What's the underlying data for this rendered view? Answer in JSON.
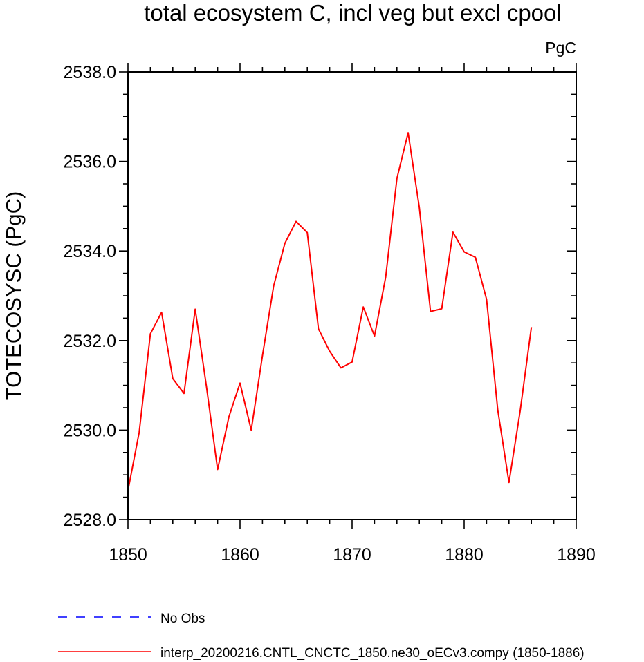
{
  "chart_data": {
    "type": "line",
    "title": "total ecosystem C, incl veg but excl cpool",
    "units": "PgC",
    "ylabel": "TOTECOSYSC  (PgC)",
    "xlabel": "",
    "xlim": [
      1850,
      1890
    ],
    "ylim": [
      2528.0,
      2538.0
    ],
    "x_ticks": [
      1850,
      1860,
      1870,
      1880,
      1890
    ],
    "y_ticks": [
      2528.0,
      2530.0,
      2532.0,
      2534.0,
      2536.0,
      2538.0
    ],
    "x_tick_labels": [
      "1850",
      "1860",
      "1870",
      "1880",
      "1890"
    ],
    "y_tick_labels": [
      "2528.0",
      "2530.0",
      "2532.0",
      "2534.0",
      "2536.0",
      "2538.0"
    ],
    "grid": false,
    "legend_position": "bottom",
    "legend": [
      {
        "label": "No Obs",
        "color": "#0000ff",
        "style": "dashed"
      },
      {
        "label": "interp_20200216.CNTL_CNCTC_1850.ne30_oECv3.compy (1850-1886)",
        "color": "#ff0000",
        "style": "solid"
      }
    ],
    "series": [
      {
        "name": "interp_20200216.CNTL_CNCTC_1850.ne30_oECv3.compy (1850-1886)",
        "color": "#ff0000",
        "x": [
          1850,
          1851,
          1852,
          1853,
          1854,
          1855,
          1856,
          1857,
          1858,
          1859,
          1860,
          1861,
          1862,
          1863,
          1864,
          1865,
          1866,
          1867,
          1868,
          1869,
          1870,
          1871,
          1872,
          1873,
          1874,
          1875,
          1876,
          1877,
          1878,
          1879,
          1880,
          1881,
          1882,
          1883,
          1884,
          1885,
          1886
        ],
        "y": [
          2528.65,
          2529.95,
          2532.15,
          2532.63,
          2531.15,
          2530.82,
          2532.7,
          2530.98,
          2529.12,
          2530.29,
          2531.05,
          2530.0,
          2531.66,
          2533.22,
          2534.17,
          2534.66,
          2534.41,
          2532.26,
          2531.76,
          2531.39,
          2531.52,
          2532.75,
          2532.1,
          2533.42,
          2535.62,
          2536.64,
          2534.97,
          2532.65,
          2532.71,
          2534.42,
          2533.98,
          2533.86,
          2532.92,
          2530.45,
          2528.83,
          2530.43,
          2532.3
        ]
      }
    ]
  }
}
